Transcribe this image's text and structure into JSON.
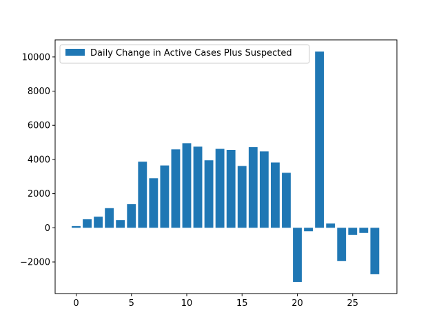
{
  "chart_data": {
    "type": "bar",
    "x": [
      0,
      1,
      2,
      3,
      4,
      5,
      6,
      7,
      8,
      9,
      10,
      11,
      12,
      13,
      14,
      15,
      16,
      17,
      18,
      19,
      20,
      21,
      22,
      23,
      24,
      25,
      26,
      27
    ],
    "series": [
      {
        "name": "Daily Change in Active Cases Plus Suspected",
        "values": [
          100,
          500,
          650,
          1150,
          450,
          1380,
          3870,
          2900,
          3650,
          4590,
          4950,
          4750,
          3950,
          4620,
          4560,
          3620,
          4720,
          4470,
          3820,
          3220,
          -3170,
          -200,
          10320,
          250,
          -1950,
          -420,
          -300,
          -2720
        ]
      }
    ],
    "xlim": [
      -1.9,
      29.0
    ],
    "ylim": [
      -3850,
      11000
    ],
    "xticks": [
      0,
      5,
      10,
      15,
      20,
      25
    ],
    "yticks": [
      -2000,
      0,
      2000,
      4000,
      6000,
      8000,
      10000
    ],
    "ytick_labels": [
      "−2000",
      "0",
      "2000",
      "4000",
      "6000",
      "8000",
      "10000"
    ],
    "legend_position": "upper-left",
    "bar_color": "#1f77b4",
    "title": "",
    "xlabel": "",
    "ylabel": ""
  }
}
